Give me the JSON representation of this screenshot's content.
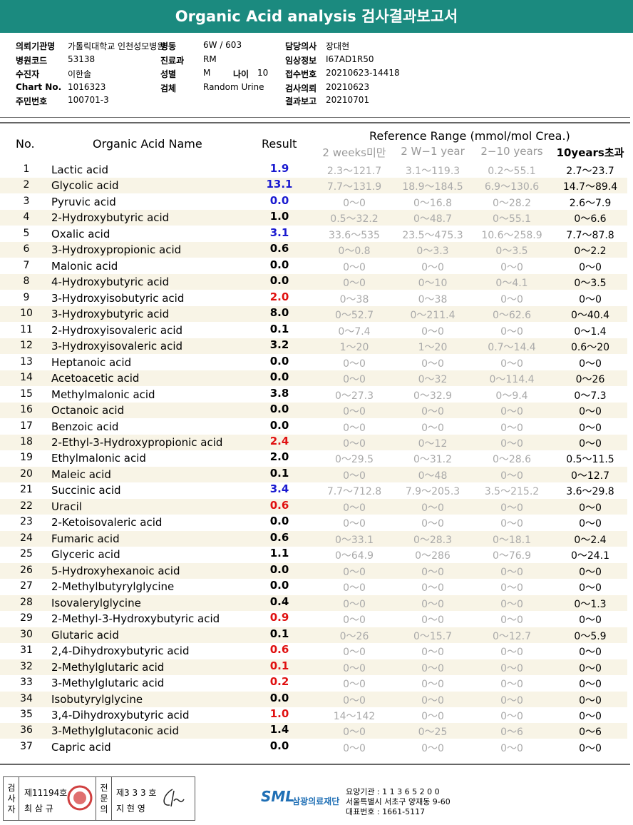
{
  "header": {
    "title": "Organic Acid analysis 검사결과보고서"
  },
  "info": [
    {
      "label": "의뢰기관명",
      "value": "가톨릭대학교 인천성모병원"
    },
    {
      "label": "병동",
      "value": "6W / 603"
    },
    {
      "label": "담당의사",
      "value": "장대현"
    },
    {
      "label": "병원코드",
      "value": "53138"
    },
    {
      "label": "진료과",
      "value": "RM"
    },
    {
      "label": "임상정보",
      "value": "I67AD1R50"
    },
    {
      "label": "수진자",
      "value": "이한솔"
    },
    {
      "label": "성별",
      "value": "M"
    },
    {
      "label": "접수번호",
      "value": "20210623-14418"
    },
    {
      "label": "Chart No.",
      "value": "1016323"
    },
    {
      "label": "검체",
      "value": "Random Urine"
    },
    {
      "label": "검사의뢰",
      "value": "20210623"
    },
    {
      "label": "주민번호",
      "value": "100701-3"
    },
    {
      "label": "나이",
      "value": "10"
    },
    {
      "label": "결과보고",
      "value": "20210701"
    }
  ],
  "table": {
    "columns": [
      "No.",
      "Organic Acid Name",
      "Result",
      "Reference Range (mmol/mol Crea.)"
    ],
    "ranges": [
      "2 weeks미만",
      "2 W−1 year",
      "2−10 years",
      "10years초과"
    ],
    "rows": [
      {
        "no": "1",
        "name": "Lactic acid",
        "result": "1.9",
        "color": "#1a1ad0",
        "ref": [
          "2.3～121.7",
          "3.1～119.3",
          "0.2～55.1",
          "2.7～23.7"
        ]
      },
      {
        "no": "2",
        "name": "Glycolic acid",
        "result": "13.1",
        "color": "#1a1ad0",
        "ref": [
          "7.7～131.9",
          "18.9～184.5",
          "6.9～130.6",
          "14.7～89.4"
        ]
      },
      {
        "no": "3",
        "name": "Pyruvic acid",
        "result": "0.0",
        "color": "#1a1ad0",
        "ref": [
          "0～0",
          "0～16.8",
          "0～28.2",
          "2.6～7.9"
        ]
      },
      {
        "no": "4",
        "name": "2-Hydroxybutyric acid",
        "result": "1.0",
        "color": "#000",
        "ref": [
          "0.5～32.2",
          "0～48.7",
          "0～55.1",
          "0～6.6"
        ]
      },
      {
        "no": "5",
        "name": "Oxalic acid",
        "result": "3.1",
        "color": "#1a1ad0",
        "ref": [
          "33.6～535",
          "23.5～475.3",
          "10.6～258.9",
          "7.7～87.8"
        ]
      },
      {
        "no": "6",
        "name": "3-Hydroxypropionic acid",
        "result": "0.6",
        "color": "#000",
        "ref": [
          "0～0.8",
          "0～3.3",
          "0～3.5",
          "0～2.2"
        ]
      },
      {
        "no": "7",
        "name": "Malonic acid",
        "result": "0.0",
        "color": "#000",
        "ref": [
          "0～0",
          "0～0",
          "0～0",
          "0～0"
        ]
      },
      {
        "no": "8",
        "name": "4-Hydroxybutyric acid",
        "result": "0.0",
        "color": "#000",
        "ref": [
          "0～0",
          "0～10",
          "0～4.1",
          "0～3.5"
        ]
      },
      {
        "no": "9",
        "name": "3-Hydroxyisobutyric acid",
        "result": "2.0",
        "color": "#e01010",
        "ref": [
          "0～38",
          "0～38",
          "0～0",
          "0～0"
        ]
      },
      {
        "no": "10",
        "name": "3-Hydroxybutyric acid",
        "result": "8.0",
        "color": "#000",
        "ref": [
          "0～52.7",
          "0～211.4",
          "0～62.6",
          "0～40.4"
        ]
      },
      {
        "no": "11",
        "name": "2-Hydroxyisovaleric acid",
        "result": "0.1",
        "color": "#000",
        "ref": [
          "0～7.4",
          "0～0",
          "0～0",
          "0～1.4"
        ]
      },
      {
        "no": "12",
        "name": "3-Hydroxyisovaleric acid",
        "result": "3.2",
        "color": "#000",
        "ref": [
          "1～20",
          "1～20",
          "0.7～14.4",
          "0.6～20"
        ]
      },
      {
        "no": "13",
        "name": "Heptanoic acid",
        "result": "0.0",
        "color": "#000",
        "ref": [
          "0～0",
          "0～0",
          "0～0",
          "0～0"
        ]
      },
      {
        "no": "14",
        "name": "Acetoacetic acid",
        "result": "0.0",
        "color": "#000",
        "ref": [
          "0～0",
          "0～32",
          "0～114.4",
          "0～26"
        ]
      },
      {
        "no": "15",
        "name": "Methylmalonic acid",
        "result": "3.8",
        "color": "#000",
        "ref": [
          "0～27.3",
          "0～32.9",
          "0～9.4",
          "0～7.3"
        ]
      },
      {
        "no": "16",
        "name": "Octanoic acid",
        "result": "0.0",
        "color": "#000",
        "ref": [
          "0～0",
          "0～0",
          "0～0",
          "0～0"
        ]
      },
      {
        "no": "17",
        "name": "Benzoic acid",
        "result": "0.0",
        "color": "#000",
        "ref": [
          "0～0",
          "0～0",
          "0～0",
          "0～0"
        ]
      },
      {
        "no": "18",
        "name": "2-Ethyl-3-Hydroxypropionic acid",
        "result": "2.4",
        "color": "#e01010",
        "ref": [
          "0～0",
          "0～12",
          "0～0",
          "0～0"
        ]
      },
      {
        "no": "19",
        "name": "Ethylmalonic acid",
        "result": "2.0",
        "color": "#000",
        "ref": [
          "0～29.5",
          "0～31.2",
          "0～28.6",
          "0.5～11.5"
        ]
      },
      {
        "no": "20",
        "name": "Maleic acid",
        "result": "0.1",
        "color": "#000",
        "ref": [
          "0～0",
          "0～48",
          "0～0",
          "0～12.7"
        ]
      },
      {
        "no": "21",
        "name": "Succinic acid",
        "result": "3.4",
        "color": "#1a1ad0",
        "ref": [
          "7.7～712.8",
          "7.9～205.3",
          "3.5～215.2",
          "3.6～29.8"
        ]
      },
      {
        "no": "22",
        "name": "Uracil",
        "result": "0.6",
        "color": "#e01010",
        "ref": [
          "0～0",
          "0～0",
          "0～0",
          "0～0"
        ]
      },
      {
        "no": "23",
        "name": "2-Ketoisovaleric acid",
        "result": "0.0",
        "color": "#000",
        "ref": [
          "0～0",
          "0～0",
          "0～0",
          "0～0"
        ]
      },
      {
        "no": "24",
        "name": "Fumaric acid",
        "result": "0.6",
        "color": "#000",
        "ref": [
          "0～33.1",
          "0～28.3",
          "0～18.1",
          "0～2.4"
        ]
      },
      {
        "no": "25",
        "name": "Glyceric acid",
        "result": "1.1",
        "color": "#000",
        "ref": [
          "0～64.9",
          "0～286",
          "0～76.9",
          "0～24.1"
        ]
      },
      {
        "no": "26",
        "name": "5-Hydroxyhexanoic acid",
        "result": "0.0",
        "color": "#000",
        "ref": [
          "0～0",
          "0～0",
          "0～0",
          "0～0"
        ]
      },
      {
        "no": "27",
        "name": "2-Methylbutyrylglycine",
        "result": "0.0",
        "color": "#000",
        "ref": [
          "0～0",
          "0～0",
          "0～0",
          "0～0"
        ]
      },
      {
        "no": "28",
        "name": "Isovalerylglycine",
        "result": "0.4",
        "color": "#000",
        "ref": [
          "0～0",
          "0～0",
          "0～0",
          "0～1.3"
        ]
      },
      {
        "no": "29",
        "name": "2-Methyl-3-Hydroxybutyric acid",
        "result": "0.9",
        "color": "#e01010",
        "ref": [
          "0～0",
          "0～0",
          "0～0",
          "0～0"
        ]
      },
      {
        "no": "30",
        "name": "Glutaric acid",
        "result": "0.1",
        "color": "#000",
        "ref": [
          "0～26",
          "0～15.7",
          "0～12.7",
          "0～5.9"
        ]
      },
      {
        "no": "31",
        "name": "2,4-Dihydroxybutyric acid",
        "result": "0.6",
        "color": "#e01010",
        "ref": [
          "0～0",
          "0～0",
          "0～0",
          "0～0"
        ]
      },
      {
        "no": "32",
        "name": "2-Methylglutaric acid",
        "result": "0.1",
        "color": "#e01010",
        "ref": [
          "0～0",
          "0～0",
          "0～0",
          "0～0"
        ]
      },
      {
        "no": "33",
        "name": "3-Methylglutaric acid",
        "result": "0.2",
        "color": "#e01010",
        "ref": [
          "0～0",
          "0～0",
          "0～0",
          "0～0"
        ]
      },
      {
        "no": "34",
        "name": "Isobutyrylglycine",
        "result": "0.0",
        "color": "#000",
        "ref": [
          "0～0",
          "0～0",
          "0～0",
          "0～0"
        ]
      },
      {
        "no": "35",
        "name": "3,4-Dihydroxybutyric acid",
        "result": "1.0",
        "color": "#e01010",
        "ref": [
          "14～142",
          "0～0",
          "0～0",
          "0～0"
        ]
      },
      {
        "no": "36",
        "name": "3-Methylglutaconic acid",
        "result": "1.4",
        "color": "#000",
        "ref": [
          "0～0",
          "0～25",
          "0～6",
          "0～6"
        ]
      },
      {
        "no": "37",
        "name": "Capric acid",
        "result": "0.0",
        "color": "#000",
        "ref": [
          "0～0",
          "0～0",
          "0～0",
          "0～0"
        ]
      }
    ]
  },
  "footer": {
    "tester_label": [
      "검",
      "사",
      "자"
    ],
    "tester_no": "제11194호",
    "tester_name": "최 삼 규",
    "doctor_label": [
      "전",
      "문",
      "의"
    ],
    "doctor_no": "제3 3 3 호",
    "doctor_name": "지 현 영",
    "logo": "SML",
    "org": "삼광의료재단",
    "code": "요양기관 : 1 1 3 6 5 2 0 0",
    "address": "서울특별시 서초구 양재동 9-60",
    "phone": "대표번호 : 1661-5117"
  }
}
